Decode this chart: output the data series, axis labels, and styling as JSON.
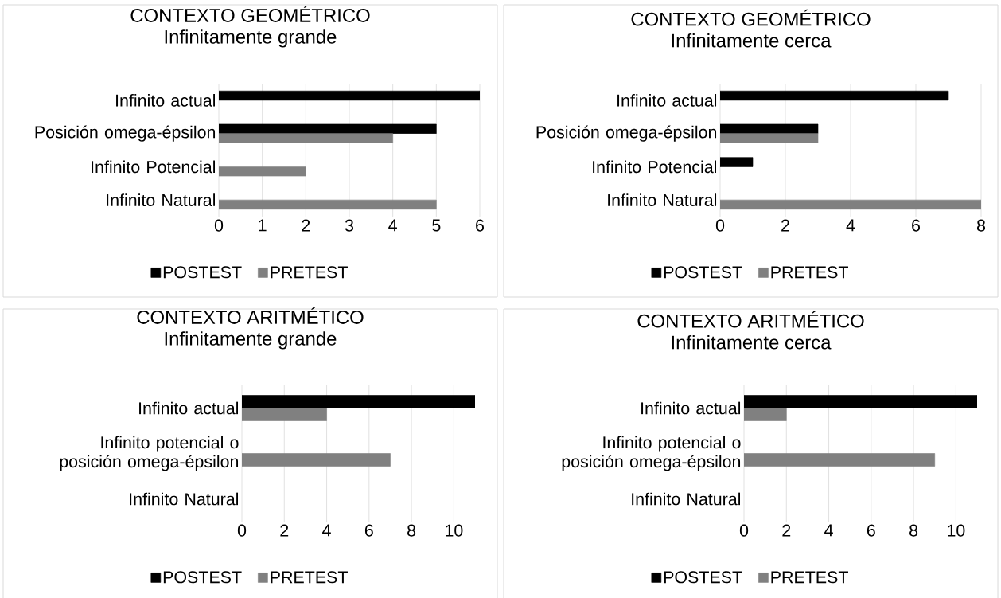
{
  "chart_data": [
    {
      "type": "bar",
      "orientation": "horizontal",
      "title": "CONTEXTO GEOMÉTRICO",
      "subtitle": "Infinitamente grande",
      "categories": [
        "Infinito actual",
        "Posición omega-épsilon",
        "Infinito Potencial",
        "Infinito Natural"
      ],
      "series": [
        {
          "name": "POSTEST",
          "color": "#000000",
          "values": [
            6,
            5,
            null,
            null
          ]
        },
        {
          "name": "PRETEST",
          "color": "#808080",
          "values": [
            null,
            4,
            2,
            5
          ]
        }
      ],
      "xlim": [
        0,
        6
      ],
      "xticks": [
        0,
        1,
        2,
        3,
        4,
        5,
        6
      ],
      "grid": "x",
      "legend": "bottom"
    },
    {
      "type": "bar",
      "orientation": "horizontal",
      "title": "CONTEXTO GEOMÉTRICO",
      "subtitle": "Infinitamente cerca",
      "categories": [
        "Infinito actual",
        "Posición omega-épsilon",
        "Infinito Potencial",
        "Infinito Natural"
      ],
      "series": [
        {
          "name": "POSTEST",
          "color": "#000000",
          "values": [
            7,
            3,
            1,
            null
          ]
        },
        {
          "name": "PRETEST",
          "color": "#808080",
          "values": [
            null,
            3,
            null,
            8
          ]
        }
      ],
      "xlim": [
        0,
        8
      ],
      "xticks": [
        0,
        2,
        4,
        6,
        8
      ],
      "grid": "x",
      "legend": "bottom"
    },
    {
      "type": "bar",
      "orientation": "horizontal",
      "title": "CONTEXTO ARITMÉTICO",
      "subtitle": "Infinitamente grande",
      "categories": [
        "Infinito actual",
        "Infinito potencial o posición omega-épsilon",
        "Infinito Natural"
      ],
      "series": [
        {
          "name": "POSTEST",
          "color": "#000000",
          "values": [
            11,
            null,
            null
          ]
        },
        {
          "name": "PRETEST",
          "color": "#808080",
          "values": [
            4,
            7,
            null
          ]
        }
      ],
      "xlim": [
        0,
        11
      ],
      "xticks": [
        0,
        2,
        4,
        6,
        8,
        10
      ],
      "grid": "x",
      "legend": "bottom"
    },
    {
      "type": "bar",
      "orientation": "horizontal",
      "title": "CONTEXTO ARITMÉTICO",
      "subtitle": "Infinitamente cerca",
      "categories": [
        "Infinito actual",
        "Infinito potencial o posición omega-épsilon",
        "Infinito Natural"
      ],
      "series": [
        {
          "name": "POSTEST",
          "color": "#000000",
          "values": [
            11,
            null,
            null
          ]
        },
        {
          "name": "PRETEST",
          "color": "#808080",
          "values": [
            2,
            9,
            null
          ]
        }
      ],
      "xlim": [
        0,
        11
      ],
      "xticks": [
        0,
        2,
        4,
        6,
        8,
        10
      ],
      "grid": "x",
      "legend": "bottom"
    }
  ]
}
